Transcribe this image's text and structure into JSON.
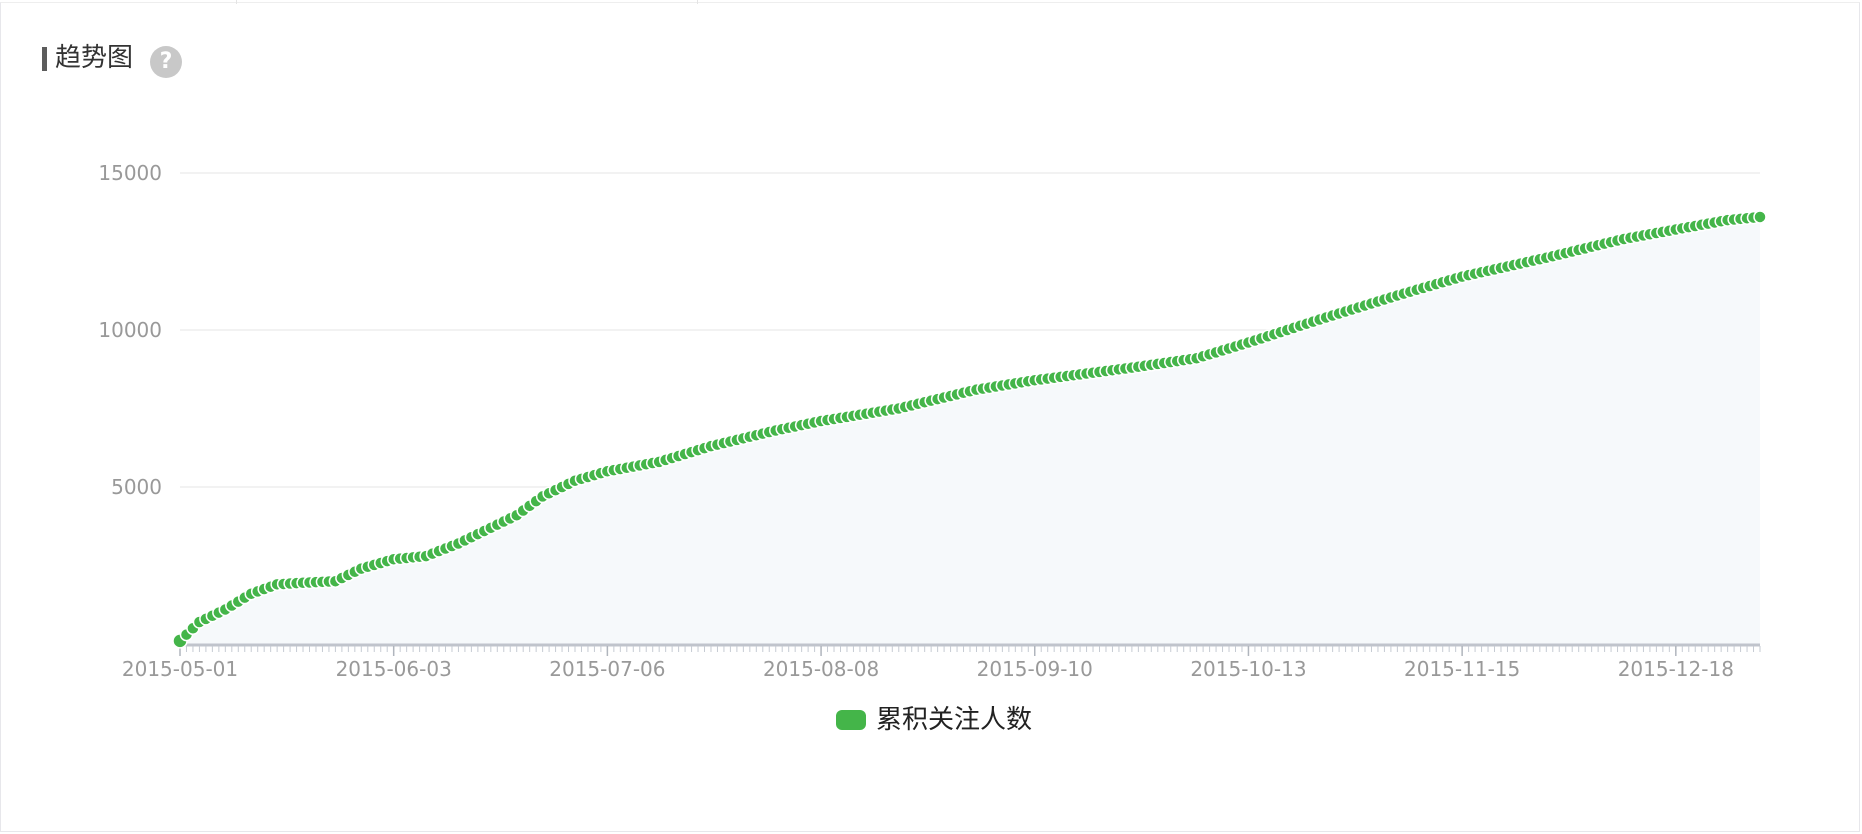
{
  "header": {
    "title": "趋势图",
    "help_glyph": "?",
    "help_icon": "question-circle-icon"
  },
  "colors": {
    "series": "#44b549",
    "area": "#f6f9fb",
    "grid": "#eeeeee",
    "axis": "#c0c4cc"
  },
  "chart_data": {
    "type": "area",
    "title": "",
    "xlabel": "",
    "ylabel": "",
    "ylim": [
      0,
      15000
    ],
    "y_ticks": [
      "15000",
      "10000",
      "5000"
    ],
    "x_tick_labels": [
      "2015-05-01",
      "2015-06-03",
      "2015-07-06",
      "2015-08-08",
      "2015-09-10",
      "2015-10-13",
      "2015-11-15",
      "2015-12-18"
    ],
    "x_range": [
      "2015-05-01",
      "2015-12-31"
    ],
    "grid": true,
    "legend": "bottom-center",
    "series": [
      {
        "name": "累积关注人数",
        "color": "#44b549",
        "points": [
          [
            "2015-05-01",
            100
          ],
          [
            "2015-05-04",
            700
          ],
          [
            "2015-05-08",
            1100
          ],
          [
            "2015-05-12",
            1600
          ],
          [
            "2015-05-16",
            1900
          ],
          [
            "2015-05-20",
            1950
          ],
          [
            "2015-05-25",
            2000
          ],
          [
            "2015-05-29",
            2400
          ],
          [
            "2015-06-03",
            2700
          ],
          [
            "2015-06-08",
            2800
          ],
          [
            "2015-06-13",
            3200
          ],
          [
            "2015-06-18",
            3700
          ],
          [
            "2015-06-22",
            4100
          ],
          [
            "2015-06-26",
            4700
          ],
          [
            "2015-07-01",
            5200
          ],
          [
            "2015-07-06",
            5500
          ],
          [
            "2015-07-14",
            5800
          ],
          [
            "2015-07-22",
            6300
          ],
          [
            "2015-08-01",
            6800
          ],
          [
            "2015-08-08",
            7100
          ],
          [
            "2015-08-20",
            7500
          ],
          [
            "2015-09-01",
            8100
          ],
          [
            "2015-09-10",
            8400
          ],
          [
            "2015-09-25",
            8800
          ],
          [
            "2015-10-05",
            9100
          ],
          [
            "2015-10-13",
            9600
          ],
          [
            "2015-10-25",
            10400
          ],
          [
            "2015-11-05",
            11100
          ],
          [
            "2015-11-15",
            11700
          ],
          [
            "2015-11-28",
            12300
          ],
          [
            "2015-12-10",
            12900
          ],
          [
            "2015-12-18",
            13200
          ],
          [
            "2015-12-26",
            13500
          ],
          [
            "2015-12-31",
            13600
          ]
        ]
      }
    ]
  }
}
